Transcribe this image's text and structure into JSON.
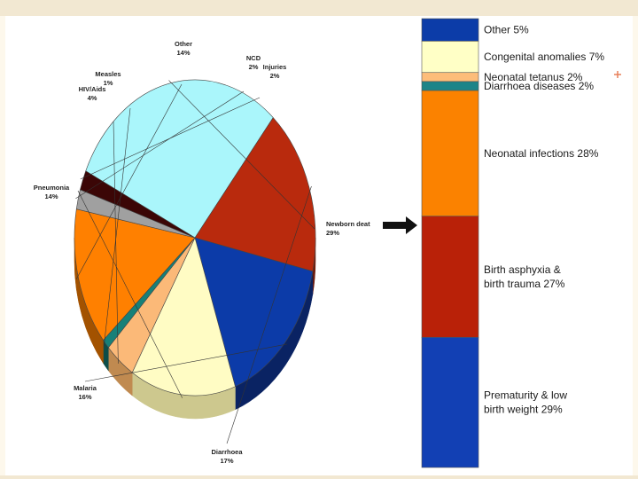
{
  "chart_data": [
    {
      "type": "pie",
      "slices": [
        {
          "label": "Newborn deaths",
          "display": "Newborn deat",
          "pct_text": "29%",
          "value": 29,
          "color": "#aaf6fb",
          "side": "#2f9a98"
        },
        {
          "label": "Diarrhoea",
          "display": "Diarrhoea",
          "pct_text": "17%",
          "value": 17,
          "color": "#b92a0d",
          "side": "#6e1b0b"
        },
        {
          "label": "Malaria",
          "display": "Malaria",
          "pct_text": "16%",
          "value": 16,
          "color": "#0c3ba8",
          "side": "#0a2363"
        },
        {
          "label": "Pneumonia",
          "display": "Pneumonia",
          "pct_text": "14%",
          "value": 14,
          "color": "#fffcc4",
          "side": "#cdc88e"
        },
        {
          "label": "HIV/Aids",
          "display": "HIV/Aids",
          "pct_text": "4%",
          "value": 4,
          "color": "#fbb978",
          "side": "#c08a50"
        },
        {
          "label": "Measles",
          "display": "Measles",
          "pct_text": "1%",
          "value": 1,
          "color": "#178078",
          "side": "#0d4d48"
        },
        {
          "label": "Other",
          "display": "Other",
          "pct_text": "14%",
          "value": 14,
          "color": "#ff8000",
          "side": "#a35200"
        },
        {
          "label": "NCD",
          "display": "NCD",
          "pct_text": "2%",
          "value": 2,
          "color": "#a0a0a0",
          "side": "#5f5f5f"
        },
        {
          "label": "Injuries",
          "display": "Injuries",
          "pct_text": "2%",
          "value": 2,
          "color": "#3b0606",
          "side": "#1d0303"
        }
      ]
    },
    {
      "type": "bar",
      "orientation": "stacked-vertical",
      "segments": [
        {
          "label": "Prematurity  & low",
          "label2": "birth weight 29%",
          "value": 29,
          "color": "#1240b4"
        },
        {
          "label": "Birth asphyxia &",
          "label2": "birth trauma 27%",
          "value": 27,
          "color": "#b92108"
        },
        {
          "label": "Neonatal infections 28%",
          "label2": "",
          "value": 28,
          "color": "#fb8200"
        },
        {
          "label": "Diarrhoea diseases 2%",
          "label2": "",
          "value": 2,
          "color": "#1c8488"
        },
        {
          "label": "Neonatal tetanus 2%",
          "label2": "",
          "value": 2,
          "color": "#fdbd7a"
        },
        {
          "label": "Congenital anomalies 7%",
          "label2": "",
          "value": 7,
          "color": "#ffffc6"
        },
        {
          "label": "Other 5%",
          "label2": "",
          "value": 5,
          "color": "#0c3ca8"
        }
      ]
    }
  ],
  "decor": {
    "background": "#fdf8ec",
    "frame_color": "#f2e8d2",
    "accent_mark": "#e8805a",
    "arrow_color": "#111111"
  }
}
